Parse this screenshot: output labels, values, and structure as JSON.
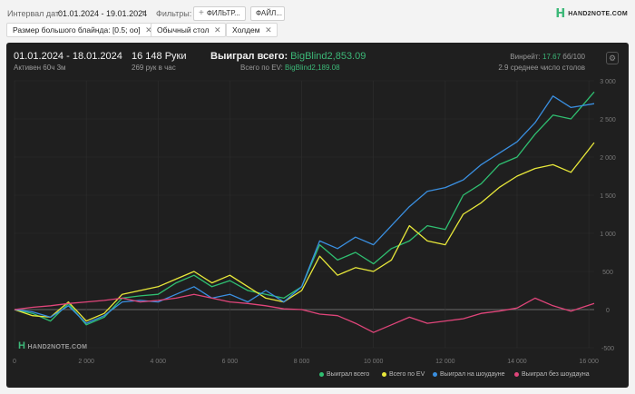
{
  "topbar": {
    "interval_label": "Интервал дат:",
    "interval_value": "01.01.2024 - 19.01.2024",
    "filters_label": "Фильтры:",
    "filters_button": "ФИЛЬТР...",
    "files_button": "ФАЙЛ...",
    "brand": "HAND2NOTE.COM"
  },
  "chips": [
    {
      "label": "Размер большого блайнда: [0.5; oo]"
    },
    {
      "label": "Обычный стол"
    },
    {
      "label": "Холдем"
    }
  ],
  "summary": {
    "date_range": "01.01.2024 - 18.01.2024",
    "active": "Активен 60ч 3м",
    "hands": "16 148 Руки",
    "hands_rate": "269 рук в час",
    "won_label": "Выиграл всего:",
    "won_value": "BigBlind2,853.09",
    "ev_label": "Всего по EV:",
    "ev_value": "BigBlind2,189.08",
    "winrate_label": "Винрейт:",
    "winrate_value": "17.67",
    "winrate_unit": "бб/100",
    "tables": "2.9 среднее число столов"
  },
  "watermark": "HAND2NOTE.COM",
  "colors": {
    "total": "#2fbf71",
    "ev": "#e8e83a",
    "showdown": "#3a8fe0",
    "nonshowdown": "#e0457a",
    "accent": "#3cb878"
  },
  "chart_data": {
    "type": "line",
    "xlim": [
      0,
      16148
    ],
    "ylim": [
      -500,
      3000
    ],
    "x_ticks": [
      "0",
      "2 000",
      "4 000",
      "6 000",
      "8 000",
      "10 000",
      "12 000",
      "14 000",
      "16 000"
    ],
    "y_ticks": [
      "3 000",
      "2 500",
      "2 000",
      "1 500",
      "1 000",
      "500",
      "0",
      "-500"
    ],
    "x_tick_values": [
      0,
      2000,
      4000,
      6000,
      8000,
      10000,
      12000,
      14000,
      16000
    ],
    "y_tick_values": [
      3000,
      2500,
      2000,
      1500,
      1000,
      500,
      0,
      -500
    ],
    "grid": true,
    "legend": "bottom-right",
    "x": [
      0,
      500,
      1000,
      1500,
      2000,
      2500,
      3000,
      3500,
      4000,
      4500,
      5000,
      5500,
      6000,
      6500,
      7000,
      7500,
      8000,
      8500,
      9000,
      9500,
      10000,
      10500,
      11000,
      11500,
      12000,
      12500,
      13000,
      13500,
      14000,
      14500,
      15000,
      15500,
      16148
    ],
    "series": [
      {
        "name": "Выиграл всего",
        "color_key": "total",
        "values": [
          0,
          -50,
          -150,
          80,
          -200,
          -100,
          150,
          180,
          200,
          350,
          450,
          300,
          380,
          250,
          200,
          150,
          300,
          850,
          650,
          750,
          600,
          800,
          900,
          1100,
          1050,
          1500,
          1650,
          1900,
          2000,
          2300,
          2550,
          2500,
          2853
        ]
      },
      {
        "name": "Всего по EV",
        "color_key": "ev",
        "values": [
          0,
          -80,
          -100,
          100,
          -150,
          -50,
          200,
          250,
          300,
          400,
          500,
          350,
          450,
          300,
          150,
          100,
          250,
          700,
          450,
          550,
          500,
          650,
          1100,
          900,
          850,
          1250,
          1400,
          1600,
          1750,
          1850,
          1900,
          1800,
          2189
        ]
      },
      {
        "name": "Выиграл на шоудауне",
        "color_key": "showdown",
        "values": [
          0,
          -30,
          -100,
          50,
          -180,
          -80,
          100,
          120,
          100,
          200,
          300,
          150,
          200,
          100,
          250,
          100,
          300,
          900,
          800,
          950,
          850,
          1100,
          1350,
          1550,
          1600,
          1700,
          1900,
          2050,
          2200,
          2450,
          2800,
          2650,
          2700
        ]
      },
      {
        "name": "Выиграл без шоудауна",
        "color_key": "nonshowdown",
        "values": [
          0,
          30,
          50,
          80,
          100,
          120,
          150,
          100,
          120,
          150,
          200,
          150,
          100,
          80,
          50,
          10,
          0,
          -60,
          -80,
          -180,
          -300,
          -200,
          -100,
          -180,
          -150,
          -120,
          -50,
          -20,
          20,
          150,
          50,
          -20,
          80
        ]
      }
    ]
  }
}
